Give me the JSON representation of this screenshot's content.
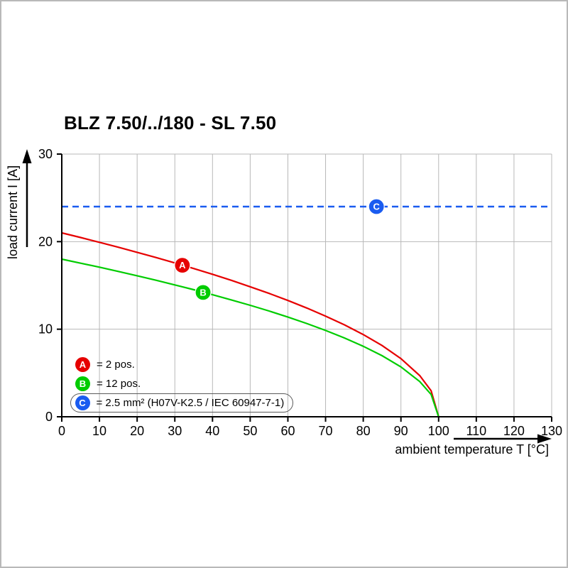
{
  "chart_data": {
    "type": "line",
    "title": "BLZ 7.50/../180 - SL 7.50",
    "xlabel": "ambient temperature T [°C]",
    "ylabel": "load current I [A]",
    "xlim": [
      0,
      130
    ],
    "ylim": [
      0,
      30
    ],
    "x_ticks": [
      0,
      10,
      20,
      30,
      40,
      50,
      60,
      70,
      80,
      90,
      100,
      110,
      120,
      130
    ],
    "y_ticks": [
      0,
      10,
      20,
      30
    ],
    "grid": true,
    "grid_color": "#b8b8b8",
    "axis_color": "#000000",
    "legend_position": "bottom-left-inside",
    "series": [
      {
        "name": "A",
        "label": "= 2 pos.",
        "color": "#e60000",
        "style": "solid",
        "marker_at": {
          "x": 32,
          "y": 17.3
        },
        "points": [
          [
            0,
            21
          ],
          [
            5,
            20.47
          ],
          [
            10,
            19.92
          ],
          [
            15,
            19.36
          ],
          [
            20,
            18.78
          ],
          [
            25,
            18.19
          ],
          [
            30,
            17.57
          ],
          [
            35,
            16.93
          ],
          [
            40,
            16.27
          ],
          [
            45,
            15.58
          ],
          [
            50,
            14.85
          ],
          [
            55,
            14.09
          ],
          [
            60,
            13.28
          ],
          [
            65,
            12.42
          ],
          [
            70,
            11.5
          ],
          [
            75,
            10.5
          ],
          [
            80,
            9.39
          ],
          [
            85,
            8.13
          ],
          [
            90,
            6.64
          ],
          [
            95,
            4.7
          ],
          [
            98,
            2.97
          ],
          [
            100,
            0
          ]
        ]
      },
      {
        "name": "B",
        "label": "= 12 pos.",
        "color": "#00cc00",
        "style": "solid",
        "marker_at": {
          "x": 37.5,
          "y": 14.2
        },
        "points": [
          [
            0,
            18
          ],
          [
            5,
            17.54
          ],
          [
            10,
            17.08
          ],
          [
            15,
            16.6
          ],
          [
            20,
            16.1
          ],
          [
            25,
            15.59
          ],
          [
            30,
            15.06
          ],
          [
            35,
            14.51
          ],
          [
            40,
            13.94
          ],
          [
            45,
            13.35
          ],
          [
            50,
            12.73
          ],
          [
            55,
            12.08
          ],
          [
            60,
            11.38
          ],
          [
            65,
            10.65
          ],
          [
            70,
            9.86
          ],
          [
            75,
            9
          ],
          [
            80,
            8.05
          ],
          [
            85,
            6.97
          ],
          [
            90,
            5.69
          ],
          [
            95,
            4.02
          ],
          [
            98,
            2.55
          ],
          [
            100,
            0
          ]
        ]
      },
      {
        "name": "C",
        "label": "= 2.5 mm² (H07V-K2.5 / IEC 60947-7-1)",
        "color": "#1a5cf0",
        "style": "dashed",
        "value": 24,
        "marker_at": {
          "x": 83.5,
          "y": 24
        },
        "points": [
          [
            0,
            24
          ],
          [
            130,
            24
          ]
        ]
      }
    ]
  }
}
